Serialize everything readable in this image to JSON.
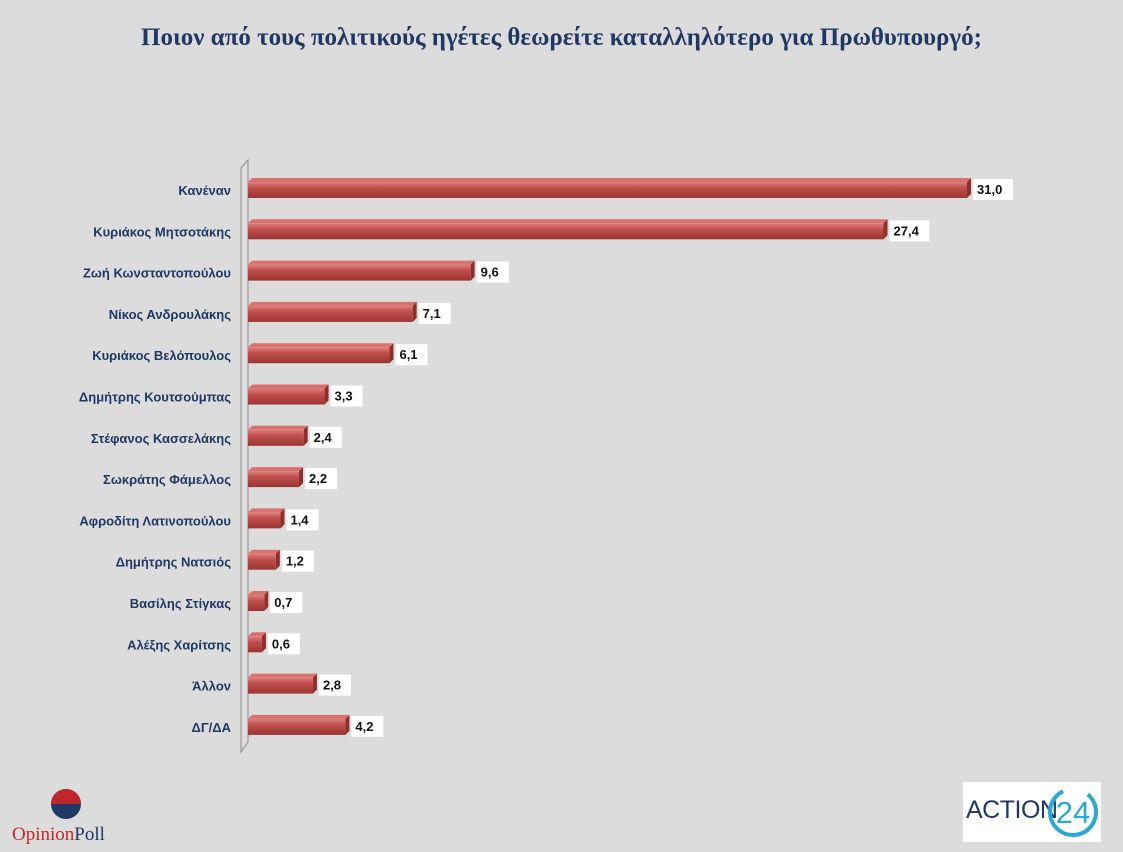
{
  "chart_data": {
    "type": "bar",
    "orientation": "horizontal",
    "title": "Ποιον από τους πολιτικούς ηγέτες θεωρείτε καταλληλότερο για Πρωθυπουργό;",
    "categories": [
      "Κανέναν",
      "Κυριάκος Μητσοτάκης",
      "Ζωή Κωνσταντοπούλου",
      "Νίκος Ανδρουλάκης",
      "Κυριάκος Βελόπουλος",
      "Δημήτρης Κουτσούμπας",
      "Στέφανος Κασσελάκης",
      "Σωκράτης Φάμελλος",
      "Αφροδίτη Λατινοπούλου",
      "Δημήτρης Νατσιός",
      "Βασίλης Στίγκας",
      "Αλέξης Χαρίτσης",
      "Άλλον",
      "ΔΓ/ΔΑ"
    ],
    "values": [
      31.0,
      27.4,
      9.6,
      7.1,
      6.1,
      3.3,
      2.4,
      2.2,
      1.4,
      1.2,
      0.7,
      0.6,
      2.8,
      4.2
    ],
    "labels": [
      "31,0",
      "27,4",
      "9,6",
      "7,1",
      "6,1",
      "3,3",
      "2,4",
      "2,2",
      "1,4",
      "1,2",
      "0,7",
      "0,6",
      "2,8",
      "4,2"
    ],
    "xlim": [
      0,
      31.0
    ],
    "bar_color": "#c0504d",
    "grid": false,
    "legend": "none"
  },
  "logos": {
    "opinion_red": "Opinion",
    "opinion_blue": "Poll",
    "action_text": "ACTION",
    "action_num": "24"
  },
  "colors": {
    "background": "#dcdcdc",
    "title": "#1f3864",
    "accent_red": "#c0272d",
    "accent_blue": "#1f3864",
    "action_cyan": "#2aa8d8"
  }
}
